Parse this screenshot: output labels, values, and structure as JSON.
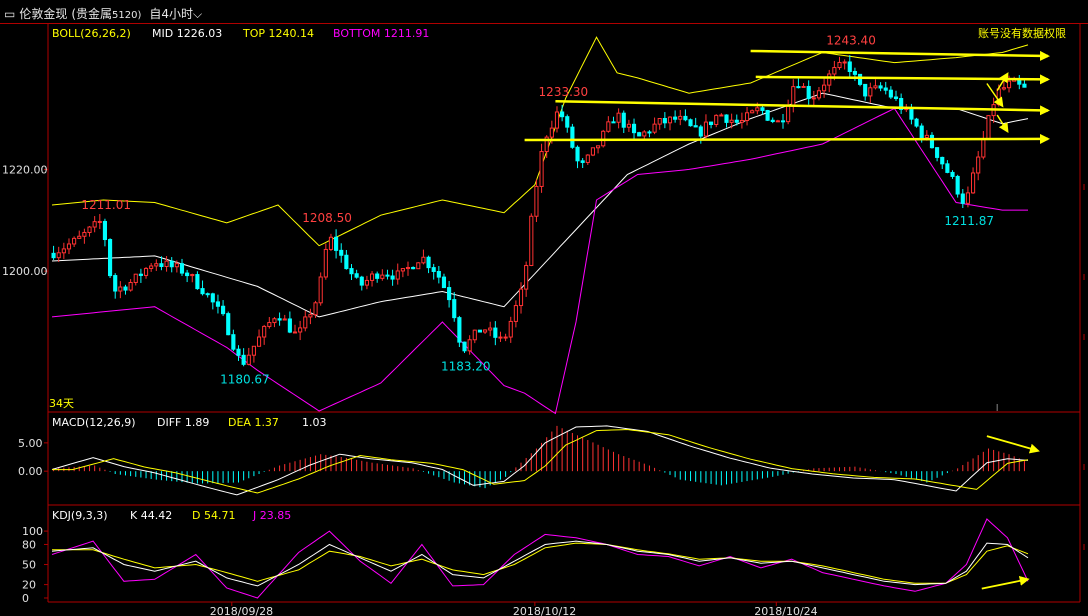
{
  "window": {
    "icon": "window-toggle-icon",
    "instrument": "伦敦金现",
    "category": "(贵金属",
    "code": "5120)",
    "period": "自4小时",
    "period_icon": "chevron-down-icon"
  },
  "notice": "账号没有数据权限",
  "colors": {
    "background": "#000000",
    "axis": "#b00000",
    "up": "#ff3232",
    "down": "#00ffff",
    "mid": "#ffffff",
    "top_band": "#ffff00",
    "bottom_band": "#ff00ff",
    "annotation": "#ffff00",
    "label_red": "#ff4040",
    "label_cyan": "#00e0e0"
  },
  "boll": {
    "name": "BOLL(26,26,2)",
    "mid_label": "MID 1226.03",
    "top_label": "TOP 1240.14",
    "bottom_label": "BOTTOM 1211.91"
  },
  "macd": {
    "name": "MACD(12,26,9)",
    "diff_label": "DIFF 1.89",
    "dea_label": "DEA 1.37",
    "macd_label": "1.03"
  },
  "kdj": {
    "name": "KDJ(9,3,3)",
    "k_label": "K 44.42",
    "d_label": "D 54.71",
    "j_label": "J 23.85"
  },
  "days_label": "34天",
  "chart_data": {
    "type": "candlestick",
    "main": {
      "y_ticks": [
        "1220.00",
        "1200.00"
      ],
      "y_tick_values": [
        1220,
        1200
      ],
      "ylim": [
        1172.5,
        1248.6
      ],
      "x_ticks": [
        "2018/09/28",
        "2018/10/12",
        "2018/10/24"
      ],
      "x_tick_bars": [
        35,
        94,
        141
      ],
      "bars": 190,
      "annotations": [
        {
          "text": "1211.01",
          "bar": 10,
          "value": 1211.01,
          "color": "red",
          "position": "above"
        },
        {
          "text": "1180.67",
          "bar": 37,
          "value": 1180.67,
          "color": "cyan",
          "position": "below"
        },
        {
          "text": "1208.50",
          "bar": 53,
          "value": 1208.5,
          "color": "red",
          "position": "above"
        },
        {
          "text": "1183.20",
          "bar": 80,
          "value": 1183.2,
          "color": "cyan",
          "position": "below"
        },
        {
          "text": "1233.30",
          "bar": 99,
          "value": 1233.3,
          "color": "red",
          "position": "above"
        },
        {
          "text": "1243.40",
          "bar": 155,
          "value": 1243.4,
          "color": "red",
          "position": "above"
        },
        {
          "text": "1211.87",
          "bar": 178,
          "value": 1211.87,
          "color": "cyan",
          "position": "below"
        }
      ],
      "anchors": [
        [
          0,
          1203.5
        ],
        [
          5,
          1206
        ],
        [
          10,
          1210
        ],
        [
          12,
          1196
        ],
        [
          16,
          1198
        ],
        [
          20,
          1202
        ],
        [
          26,
          1200
        ],
        [
          30,
          1196
        ],
        [
          34,
          1190
        ],
        [
          37,
          1181.5
        ],
        [
          40,
          1186
        ],
        [
          44,
          1192
        ],
        [
          48,
          1187
        ],
        [
          52,
          1195
        ],
        [
          54,
          1207
        ],
        [
          57,
          1202
        ],
        [
          60,
          1197
        ],
        [
          64,
          1200
        ],
        [
          68,
          1199
        ],
        [
          72,
          1203
        ],
        [
          75,
          1200
        ],
        [
          78,
          1194
        ],
        [
          80,
          1184.5
        ],
        [
          84,
          1189
        ],
        [
          88,
          1186
        ],
        [
          92,
          1197
        ],
        [
          94,
          1214
        ],
        [
          96,
          1226
        ],
        [
          99,
          1232
        ],
        [
          103,
          1220
        ],
        [
          106,
          1224
        ],
        [
          110,
          1231
        ],
        [
          114,
          1226
        ],
        [
          118,
          1229
        ],
        [
          122,
          1230
        ],
        [
          126,
          1227
        ],
        [
          130,
          1231
        ],
        [
          134,
          1229
        ],
        [
          138,
          1232
        ],
        [
          140,
          1230
        ],
        [
          142,
          1229
        ],
        [
          145,
          1238
        ],
        [
          148,
          1234
        ],
        [
          152,
          1239
        ],
        [
          155,
          1241
        ],
        [
          158,
          1235
        ],
        [
          162,
          1236
        ],
        [
          165,
          1233
        ],
        [
          168,
          1229
        ],
        [
          172,
          1224
        ],
        [
          176,
          1217
        ],
        [
          178,
          1213
        ],
        [
          181,
          1224
        ],
        [
          184,
          1235
        ],
        [
          187,
          1237
        ],
        [
          190,
          1235.5
        ]
      ]
    },
    "boll_series": [
      {
        "name": "MID",
        "color": "white",
        "points": [
          [
            0,
            1202
          ],
          [
            20,
            1203
          ],
          [
            40,
            1197
          ],
          [
            52,
            1191
          ],
          [
            64,
            1194
          ],
          [
            76,
            1196
          ],
          [
            88,
            1193
          ],
          [
            100,
            1206
          ],
          [
            112,
            1219
          ],
          [
            124,
            1225
          ],
          [
            136,
            1230
          ],
          [
            150,
            1235
          ],
          [
            164,
            1232
          ],
          [
            176,
            1232
          ],
          [
            185,
            1229
          ],
          [
            190,
            1230
          ]
        ]
      },
      {
        "name": "TOP",
        "color": "yellow",
        "points": [
          [
            0,
            1213
          ],
          [
            10,
            1214
          ],
          [
            20,
            1213.5
          ],
          [
            34,
            1209.5
          ],
          [
            44,
            1213
          ],
          [
            52,
            1205
          ],
          [
            64,
            1211
          ],
          [
            76,
            1214
          ],
          [
            88,
            1211.5
          ],
          [
            94,
            1217
          ],
          [
            100,
            1234
          ],
          [
            106,
            1246
          ],
          [
            110,
            1239
          ],
          [
            114,
            1238
          ],
          [
            124,
            1235
          ],
          [
            136,
            1237
          ],
          [
            150,
            1243
          ],
          [
            164,
            1241
          ],
          [
            176,
            1242
          ],
          [
            185,
            1243
          ],
          [
            190,
            1244.5
          ]
        ]
      },
      {
        "name": "BOTTOM",
        "color": "magenta",
        "points": [
          [
            0,
            1191
          ],
          [
            10,
            1192
          ],
          [
            20,
            1193
          ],
          [
            34,
            1185
          ],
          [
            40,
            1180.5
          ],
          [
            52,
            1172.5
          ],
          [
            64,
            1178
          ],
          [
            76,
            1190
          ],
          [
            88,
            1177.5
          ],
          [
            92,
            1176
          ],
          [
            98,
            1172
          ],
          [
            102,
            1190
          ],
          [
            106,
            1214
          ],
          [
            114,
            1219
          ],
          [
            124,
            1220
          ],
          [
            136,
            1222
          ],
          [
            150,
            1225
          ],
          [
            164,
            1232
          ],
          [
            176,
            1213.5
          ],
          [
            185,
            1212
          ],
          [
            190,
            1212
          ]
        ]
      }
    ],
    "trend_lines": [
      {
        "from": [
          136,
          1243.3
        ],
        "to": [
          190,
          1242.3
        ],
        "color": "yellow",
        "arrow": "right"
      },
      {
        "from": [
          137,
          1238.2
        ],
        "to": [
          190,
          1237.7
        ],
        "color": "yellow",
        "arrow": "right"
      },
      {
        "from": [
          98,
          1233.4
        ],
        "to": [
          190,
          1231.6
        ],
        "color": "yellow",
        "arrow": "right"
      },
      {
        "from": [
          92,
          1225.8
        ],
        "to": [
          190,
          1226.0
        ],
        "color": "yellow",
        "arrow": "right"
      }
    ],
    "forecast_arrows": [
      {
        "from": [
          184,
          1235.5
        ],
        "to": [
          186,
          1238.8
        ],
        "color": "yellow"
      },
      {
        "from": [
          184,
          1230.7
        ],
        "to": [
          186,
          1227.5
        ],
        "color": "yellow"
      },
      {
        "from": [
          182,
          1236.9
        ],
        "to": [
          185,
          1232.5
        ],
        "color": "yellow"
      }
    ],
    "macd_panel": {
      "y_ticks": [
        "5.00",
        "0.00"
      ],
      "y_tick_values": [
        5,
        0
      ],
      "ylim": [
        -5.8,
        10.1
      ],
      "anchors": [
        [
          0,
          0.3
        ],
        [
          8,
          2.4
        ],
        [
          14,
          0.8
        ],
        [
          20,
          -0.3
        ],
        [
          30,
          -2.8
        ],
        [
          36,
          -4.2
        ],
        [
          44,
          -1.5
        ],
        [
          50,
          1.0
        ],
        [
          56,
          3.0
        ],
        [
          62,
          2.2
        ],
        [
          70,
          1.5
        ],
        [
          76,
          0.3
        ],
        [
          82,
          -2.5
        ],
        [
          88,
          -1.8
        ],
        [
          92,
          1.0
        ],
        [
          96,
          5.0
        ],
        [
          102,
          7.8
        ],
        [
          108,
          8.0
        ],
        [
          116,
          7.0
        ],
        [
          124,
          4.5
        ],
        [
          132,
          2.3
        ],
        [
          140,
          0.5
        ],
        [
          148,
          -0.5
        ],
        [
          156,
          -1.2
        ],
        [
          164,
          -1.5
        ],
        [
          170,
          -2.5
        ],
        [
          176,
          -3.5
        ],
        [
          182,
          1.5
        ],
        [
          186,
          2.2
        ],
        [
          190,
          1.9
        ]
      ],
      "histogram_anchors": [
        [
          0,
          0.5
        ],
        [
          8,
          1.0
        ],
        [
          12,
          -0.5
        ],
        [
          20,
          -1.5
        ],
        [
          28,
          -2.2
        ],
        [
          36,
          -2.0
        ],
        [
          44,
          1.0
        ],
        [
          52,
          3.0
        ],
        [
          56,
          2.5
        ],
        [
          62,
          1.5
        ],
        [
          70,
          0.5
        ],
        [
          78,
          -2.0
        ],
        [
          84,
          -3.0
        ],
        [
          88,
          -1.0
        ],
        [
          94,
          4.0
        ],
        [
          98,
          8.0
        ],
        [
          104,
          5.5
        ],
        [
          110,
          3.0
        ],
        [
          116,
          1.0
        ],
        [
          122,
          -1.5
        ],
        [
          130,
          -2.5
        ],
        [
          140,
          -1.0
        ],
        [
          148,
          0.5
        ],
        [
          156,
          0.8
        ],
        [
          164,
          -0.5
        ],
        [
          170,
          -2.0
        ],
        [
          176,
          0.5
        ],
        [
          182,
          4.0
        ],
        [
          186,
          3.0
        ],
        [
          190,
          1.5
        ]
      ],
      "arrow": {
        "from": [
          182,
          6.2
        ],
        "to": [
          190,
          3.6
        ],
        "color": "yellow"
      }
    },
    "kdj_panel": {
      "y_ticks": [
        "100",
        "80",
        "50",
        "20",
        "0"
      ],
      "y_tick_values": [
        100,
        80,
        50,
        20,
        0
      ],
      "ylim": [
        -6,
        136
      ],
      "k_anchors": [
        [
          0,
          70
        ],
        [
          8,
          75
        ],
        [
          14,
          50
        ],
        [
          20,
          40
        ],
        [
          28,
          55
        ],
        [
          34,
          30
        ],
        [
          40,
          18
        ],
        [
          48,
          50
        ],
        [
          54,
          80
        ],
        [
          60,
          60
        ],
        [
          66,
          40
        ],
        [
          72,
          65
        ],
        [
          78,
          35
        ],
        [
          84,
          30
        ],
        [
          90,
          55
        ],
        [
          96,
          80
        ],
        [
          102,
          85
        ],
        [
          108,
          80
        ],
        [
          114,
          70
        ],
        [
          120,
          65
        ],
        [
          126,
          55
        ],
        [
          132,
          60
        ],
        [
          138,
          52
        ],
        [
          144,
          55
        ],
        [
          150,
          45
        ],
        [
          156,
          35
        ],
        [
          162,
          25
        ],
        [
          168,
          20
        ],
        [
          174,
          22
        ],
        [
          178,
          40
        ],
        [
          182,
          82
        ],
        [
          186,
          80
        ],
        [
          190,
          60
        ]
      ],
      "d_anchors": [
        [
          0,
          72
        ],
        [
          8,
          72
        ],
        [
          14,
          58
        ],
        [
          20,
          45
        ],
        [
          28,
          50
        ],
        [
          34,
          38
        ],
        [
          40,
          25
        ],
        [
          48,
          42
        ],
        [
          54,
          70
        ],
        [
          60,
          62
        ],
        [
          66,
          48
        ],
        [
          72,
          58
        ],
        [
          78,
          42
        ],
        [
          84,
          35
        ],
        [
          90,
          50
        ],
        [
          96,
          75
        ],
        [
          102,
          82
        ],
        [
          108,
          80
        ],
        [
          114,
          72
        ],
        [
          120,
          66
        ],
        [
          126,
          58
        ],
        [
          132,
          60
        ],
        [
          138,
          55
        ],
        [
          144,
          55
        ],
        [
          150,
          48
        ],
        [
          156,
          38
        ],
        [
          162,
          28
        ],
        [
          168,
          22
        ],
        [
          174,
          22
        ],
        [
          178,
          35
        ],
        [
          182,
          70
        ],
        [
          186,
          78
        ],
        [
          190,
          66
        ]
      ],
      "j_anchors": [
        [
          0,
          65
        ],
        [
          8,
          85
        ],
        [
          14,
          25
        ],
        [
          20,
          28
        ],
        [
          28,
          65
        ],
        [
          34,
          15
        ],
        [
          40,
          0
        ],
        [
          48,
          68
        ],
        [
          54,
          100
        ],
        [
          60,
          55
        ],
        [
          66,
          22
        ],
        [
          72,
          80
        ],
        [
          78,
          18
        ],
        [
          84,
          20
        ],
        [
          90,
          65
        ],
        [
          96,
          95
        ],
        [
          102,
          90
        ],
        [
          108,
          80
        ],
        [
          114,
          65
        ],
        [
          120,
          62
        ],
        [
          126,
          48
        ],
        [
          132,
          62
        ],
        [
          138,
          45
        ],
        [
          144,
          58
        ],
        [
          150,
          38
        ],
        [
          156,
          28
        ],
        [
          162,
          18
        ],
        [
          168,
          10
        ],
        [
          174,
          22
        ],
        [
          178,
          50
        ],
        [
          182,
          118
        ],
        [
          186,
          90
        ],
        [
          190,
          25
        ]
      ],
      "arrow": {
        "from": [
          181,
          14
        ],
        "to": [
          188,
          28
        ],
        "color": "yellow"
      }
    }
  }
}
